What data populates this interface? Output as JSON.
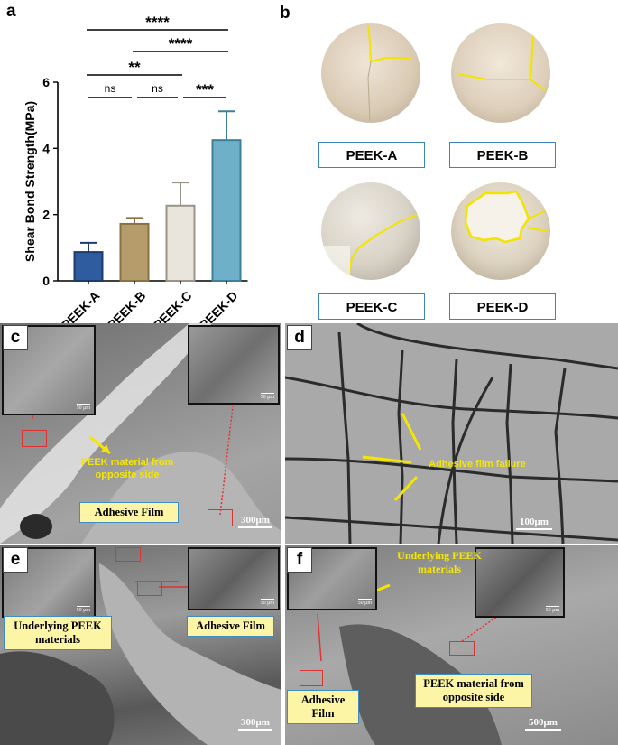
{
  "panels": {
    "a": "a",
    "b": "b",
    "c": "c",
    "d": "d",
    "e": "e",
    "f": "f"
  },
  "chart_data": {
    "type": "bar",
    "ylabel": "Shear Bond Strength(MPa)",
    "categories": [
      "PEEK-A",
      "PEEK-B",
      "PEEK-C",
      "PEEK-D"
    ],
    "values": [
      0.87,
      1.72,
      2.27,
      4.25
    ],
    "errors": [
      0.28,
      0.18,
      0.7,
      0.87
    ],
    "ylim": [
      0,
      6
    ],
    "yticks": [
      "0",
      "2",
      "4",
      "6"
    ],
    "colors": [
      "#2f5b9f",
      "#b59d6b",
      "#e9e5dd",
      "#6fb0c9"
    ],
    "edge_colors": [
      "#1d3c6e",
      "#8a7143",
      "#9a9487",
      "#3e7f99"
    ],
    "significance": [
      {
        "from": 0,
        "to": 3,
        "label": "****"
      },
      {
        "from": 1,
        "to": 3,
        "label": "****"
      },
      {
        "from": 0,
        "to": 2,
        "label": "**"
      },
      {
        "from": 0,
        "to": 1,
        "label": "ns"
      },
      {
        "from": 1,
        "to": 2,
        "label": "ns"
      },
      {
        "from": 2,
        "to": 3,
        "label": "***"
      }
    ]
  },
  "panel_b": {
    "labels": [
      "PEEK-A",
      "PEEK-B",
      "PEEK-C",
      "PEEK-D"
    ]
  },
  "panel_c": {
    "annotation": "PEEK material from opposite side",
    "label": "Adhesive Film",
    "scale": "300μm",
    "inset_scale": "50 μm"
  },
  "panel_d": {
    "annotation": "Adhesive film failure",
    "scale": "100μm"
  },
  "panel_e": {
    "label_left": "Underlying PEEK materials",
    "label_right": "Adhesive Film",
    "scale": "300μm",
    "inset_scale": "50 μm"
  },
  "panel_f": {
    "annotation": "Underlying PEEK materials",
    "label_left": "Adhesive Film",
    "label_right": "PEEK material from opposite side",
    "scale": "500μm",
    "inset_scale": "50 μm"
  },
  "colors": {
    "accent_yellow": "#f5e600",
    "box_blue": "#3a86b8",
    "marker_red": "#d33"
  }
}
